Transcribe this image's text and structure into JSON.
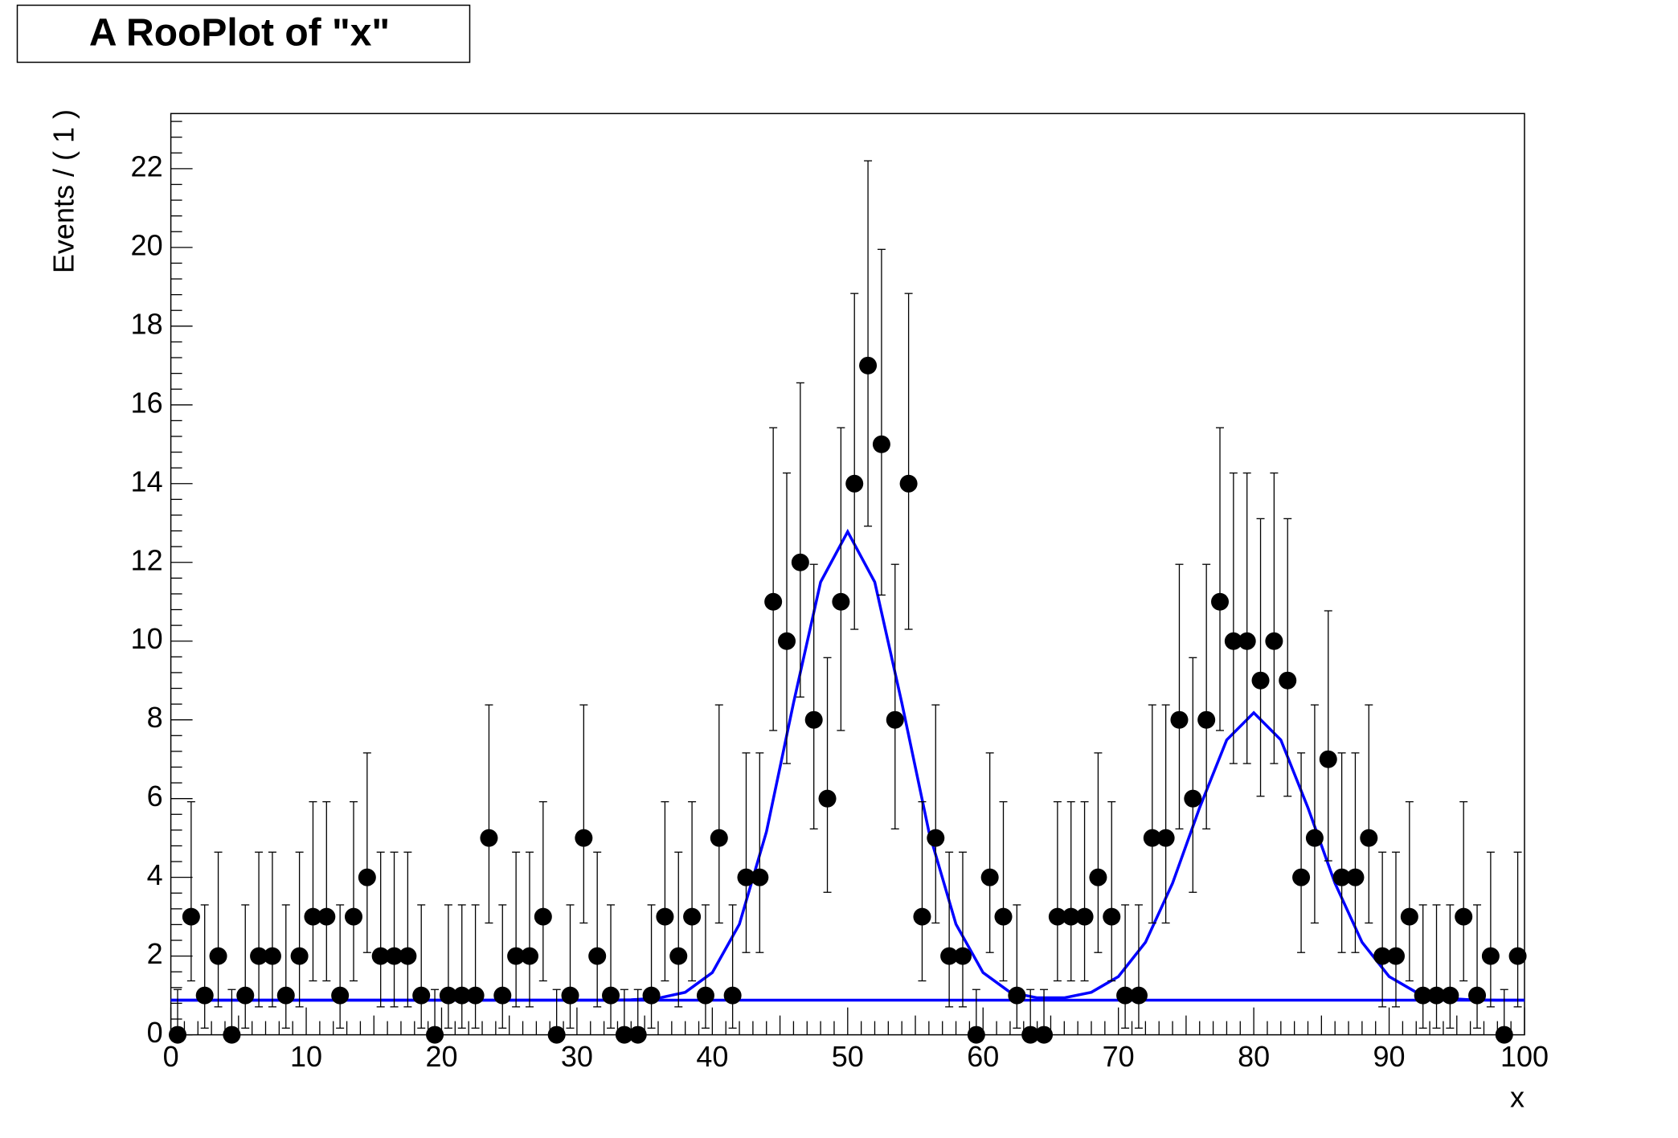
{
  "chart_data": {
    "type": "scatter",
    "title": "A RooPlot of \"x\"",
    "x_label": "x",
    "y_label": "Events / ( 1 )",
    "xlim": [
      0,
      100
    ],
    "ylim": [
      0,
      23.4
    ],
    "xticks": [
      0,
      10,
      20,
      30,
      40,
      50,
      60,
      70,
      80,
      90,
      100
    ],
    "yticks": [
      0,
      2,
      4,
      6,
      8,
      10,
      12,
      14,
      16,
      18,
      20,
      22
    ],
    "points": {
      "color": "#000000",
      "x": [
        0.5,
        1.5,
        2.5,
        3.5,
        4.5,
        5.5,
        6.5,
        7.5,
        8.5,
        9.5,
        10.5,
        11.5,
        12.5,
        13.5,
        14.5,
        15.5,
        16.5,
        17.5,
        18.5,
        19.5,
        20.5,
        21.5,
        22.5,
        23.5,
        24.5,
        25.5,
        26.5,
        27.5,
        28.5,
        29.5,
        30.5,
        31.5,
        32.5,
        33.5,
        34.5,
        35.5,
        36.5,
        37.5,
        38.5,
        39.5,
        40.5,
        41.5,
        42.5,
        43.5,
        44.5,
        45.5,
        46.5,
        47.5,
        48.5,
        49.5,
        50.5,
        51.5,
        52.5,
        53.5,
        54.5,
        55.5,
        56.5,
        57.5,
        58.5,
        59.5,
        60.5,
        61.5,
        62.5,
        63.5,
        64.5,
        65.5,
        66.5,
        67.5,
        68.5,
        69.5,
        70.5,
        71.5,
        72.5,
        73.5,
        74.5,
        75.5,
        76.5,
        77.5,
        78.5,
        79.5,
        80.5,
        81.5,
        82.5,
        83.5,
        84.5,
        85.5,
        86.5,
        87.5,
        88.5,
        89.5,
        90.5,
        91.5,
        92.5,
        93.5,
        94.5,
        95.5,
        96.5,
        97.5,
        98.5,
        99.5
      ],
      "values": [
        0,
        3,
        1,
        2,
        0,
        1,
        2,
        2,
        1,
        2,
        3,
        3,
        1,
        3,
        4,
        2,
        2,
        2,
        1,
        0,
        1,
        1,
        1,
        5,
        1,
        2,
        2,
        3,
        0,
        1,
        5,
        2,
        1,
        0,
        0,
        1,
        3,
        2,
        3,
        1,
        5,
        1,
        4,
        4,
        11,
        10,
        12,
        8,
        6,
        11,
        14,
        17,
        15,
        8,
        14,
        3,
        5,
        2,
        2,
        0,
        4,
        3,
        1,
        0,
        0,
        3,
        3,
        3,
        4,
        3,
        1,
        1,
        5,
        5,
        8,
        6,
        8,
        11,
        10,
        10,
        9,
        10,
        9,
        4,
        5,
        7,
        4,
        4,
        5,
        2,
        2,
        3,
        1,
        1,
        1,
        3,
        1,
        2,
        0,
        2
      ],
      "error_low": [
        0,
        1.63,
        0.83,
        1.29,
        0,
        0.83,
        1.29,
        1.29,
        0.83,
        1.29,
        1.63,
        1.63,
        0.83,
        1.63,
        1.91,
        1.29,
        1.29,
        1.29,
        0.83,
        0,
        0.83,
        0.83,
        0.83,
        2.16,
        0.83,
        1.29,
        1.29,
        1.63,
        0,
        0.83,
        2.16,
        1.29,
        0.83,
        0,
        0,
        0.83,
        1.63,
        1.29,
        1.63,
        0.83,
        2.16,
        0.83,
        1.91,
        1.91,
        3.27,
        3.11,
        3.42,
        2.77,
        2.38,
        3.27,
        3.7,
        4.08,
        3.83,
        2.77,
        3.7,
        1.63,
        2.16,
        1.29,
        1.29,
        0,
        1.91,
        1.63,
        0.83,
        0,
        0,
        1.63,
        1.63,
        1.63,
        1.91,
        1.63,
        0.83,
        0.83,
        2.16,
        2.16,
        2.77,
        2.38,
        2.77,
        3.27,
        3.11,
        3.11,
        2.94,
        3.11,
        2.94,
        1.91,
        2.16,
        2.58,
        1.91,
        1.91,
        2.16,
        1.29,
        1.29,
        1.63,
        0.83,
        0.83,
        0.83,
        1.63,
        0.83,
        1.29,
        0,
        1.29
      ],
      "error_high": [
        1.15,
        2.92,
        2.3,
        2.64,
        1.15,
        2.3,
        2.64,
        2.64,
        2.3,
        2.64,
        2.92,
        2.92,
        2.3,
        2.92,
        3.16,
        2.64,
        2.64,
        2.64,
        2.3,
        1.15,
        2.3,
        2.3,
        2.3,
        3.38,
        2.3,
        2.64,
        2.64,
        2.92,
        1.15,
        2.3,
        3.38,
        2.64,
        2.3,
        1.15,
        1.15,
        2.3,
        2.92,
        2.64,
        2.92,
        2.3,
        3.38,
        2.3,
        3.16,
        3.16,
        4.42,
        4.27,
        4.56,
        3.95,
        3.58,
        4.42,
        4.83,
        5.2,
        4.95,
        3.95,
        4.83,
        2.92,
        3.38,
        2.64,
        2.64,
        1.15,
        3.16,
        2.92,
        2.3,
        1.15,
        1.15,
        2.92,
        2.92,
        2.92,
        3.16,
        2.92,
        2.3,
        2.3,
        3.38,
        3.38,
        3.95,
        3.58,
        3.95,
        4.42,
        4.27,
        4.27,
        4.11,
        4.27,
        4.11,
        3.16,
        3.38,
        3.77,
        3.16,
        3.16,
        3.38,
        2.64,
        2.64,
        2.92,
        2.3,
        2.3,
        2.3,
        2.92,
        2.3,
        2.64,
        1.15,
        2.64
      ]
    },
    "curves": [
      {
        "color": "#0000ff",
        "x": [
          0,
          2,
          4,
          6,
          8,
          10,
          12,
          14,
          16,
          18,
          20,
          22,
          24,
          26,
          28,
          30,
          32,
          34,
          36,
          38,
          40,
          42,
          44,
          46,
          48,
          50,
          52,
          54,
          56,
          58,
          60,
          62,
          64,
          66,
          68,
          70,
          72,
          74,
          76,
          78,
          80,
          82,
          84,
          86,
          88,
          90,
          92,
          94,
          96,
          98,
          100
        ],
        "values": [
          0.88,
          0.88,
          0.88,
          0.88,
          0.88,
          0.88,
          0.88,
          0.88,
          0.88,
          0.88,
          0.88,
          0.88,
          0.88,
          0.88,
          0.88,
          0.88,
          0.88,
          0.89,
          0.93,
          1.08,
          1.58,
          2.81,
          5.16,
          8.43,
          11.5,
          12.78,
          11.5,
          8.43,
          5.16,
          2.81,
          1.58,
          1.08,
          0.94,
          0.94,
          1.08,
          1.48,
          2.35,
          3.85,
          5.77,
          7.49,
          8.18,
          7.49,
          5.77,
          3.85,
          2.35,
          1.48,
          1.08,
          0.93,
          0.89,
          0.88,
          0.88
        ]
      },
      {
        "color": "#0000ff",
        "x": [
          0,
          100
        ],
        "values": [
          0.88,
          0.88
        ]
      }
    ]
  }
}
